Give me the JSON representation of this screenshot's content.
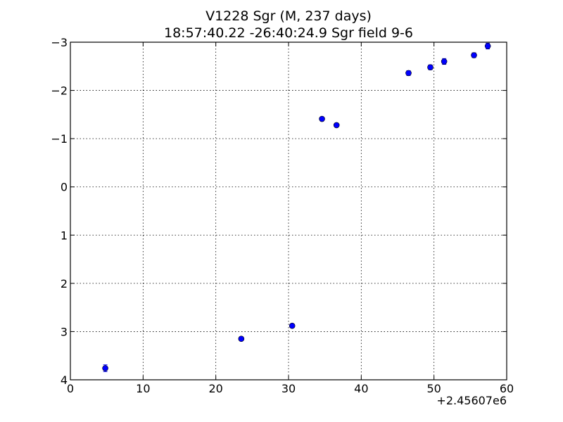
{
  "chart_data": {
    "type": "scatter",
    "title": "V1228 Sgr  (M, 237 days)",
    "subtitle": "18:57:40.22 -26:40:24.9 Sgr field 9-6",
    "xlabel": "",
    "ylabel": "",
    "x_offset_label": "+2.45607e6",
    "xlim": [
      0,
      60
    ],
    "ylim": [
      4,
      -3
    ],
    "y_inverted": true,
    "grid": true,
    "x_ticks": [
      0,
      10,
      20,
      30,
      40,
      50,
      60
    ],
    "y_ticks": [
      -3,
      -2,
      -1,
      0,
      1,
      2,
      3,
      4
    ],
    "x_tick_labels": [
      "0",
      "10",
      "20",
      "30",
      "40",
      "50",
      "60"
    ],
    "y_tick_labels": [
      "−3",
      "−2",
      "−1",
      "0",
      "1",
      "2",
      "3",
      "4"
    ],
    "marker_color": "#0000ff",
    "series": [
      {
        "x": [
          4.8,
          23.5,
          30.5,
          34.6,
          36.6,
          46.5,
          49.5,
          51.4,
          55.5,
          57.4
        ],
        "y": [
          3.76,
          3.15,
          2.88,
          -1.41,
          -1.28,
          -2.36,
          -2.48,
          -2.6,
          -2.73,
          -2.92
        ],
        "err": [
          0.07,
          0.03,
          0.03,
          0.03,
          0.03,
          0.05,
          0.05,
          0.06,
          0.05,
          0.06
        ]
      }
    ]
  }
}
